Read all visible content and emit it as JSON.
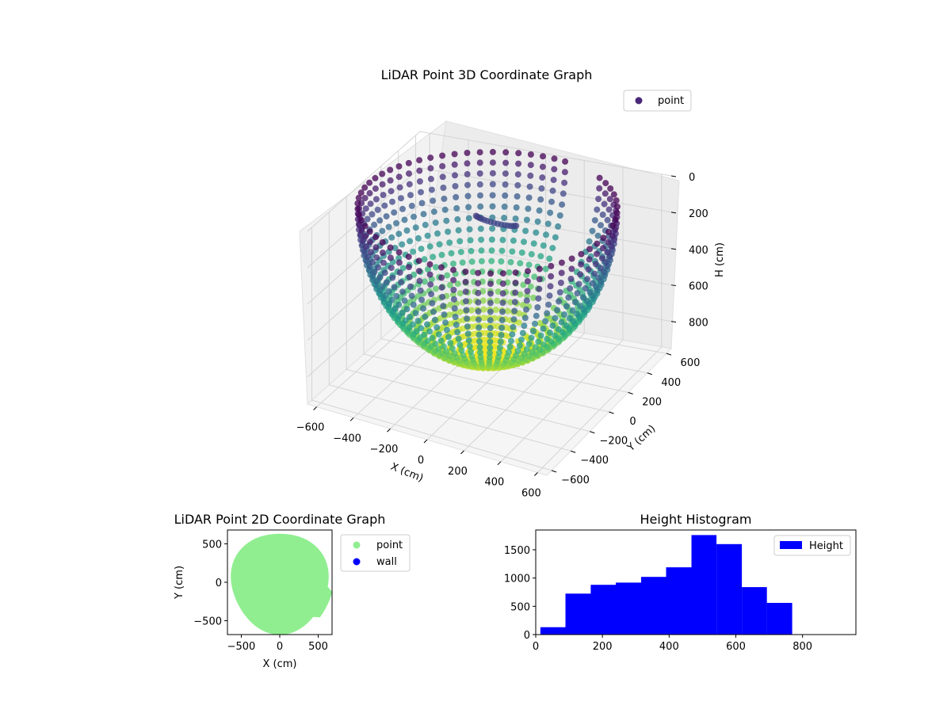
{
  "figure_colors": {
    "viridis_dark": "#440154",
    "viridis_mid": "#21918c",
    "viridis_bright": "#fde725",
    "point_green": "#90ee90",
    "wall_blue": "#0000ff",
    "hist_blue": "#0000ff"
  },
  "chart_data": [
    {
      "id": "plot3d",
      "type": "scatter",
      "title": "LiDAR Point 3D Coordinate Graph",
      "xlabel": "X (cm)",
      "ylabel": "Y (cm)",
      "zlabel": "H (cm)",
      "xticks": [
        "−600",
        "−400",
        "−200",
        "0",
        "200",
        "400",
        "600"
      ],
      "yticks": [
        "600",
        "400",
        "200",
        "0",
        "−200",
        "−400",
        "−600"
      ],
      "zticks": [
        "0",
        "200",
        "400",
        "600",
        "800"
      ],
      "xlim": [
        -650,
        650
      ],
      "ylim": [
        -650,
        650
      ],
      "zlim": [
        0,
        950
      ],
      "zinverted": true,
      "colormap": "viridis",
      "grid": true,
      "legend": {
        "placement": "top-right",
        "entries": [
          {
            "label": "point",
            "color": "#482878"
          }
        ]
      },
      "shape": {
        "description_free": true,
        "rim_radius": 620,
        "max_height": 800
      }
    },
    {
      "id": "plot2d",
      "type": "scatter",
      "title": "LiDAR Point 2D Coordinate Graph",
      "xlabel": "X (cm)",
      "ylabel": "Y (cm)",
      "xticks": [
        -500,
        0,
        500
      ],
      "yticks": [
        -500,
        0,
        500
      ],
      "xlim": [
        -680,
        680
      ],
      "ylim": [
        -680,
        680
      ],
      "series": [
        {
          "name": "point",
          "color": "#90ee90",
          "radius": 620
        },
        {
          "name": "wall",
          "color": "#0000ff"
        }
      ],
      "legend": {
        "placement": "right-outside",
        "entries": [
          {
            "label": "point",
            "color": "#90ee90"
          },
          {
            "label": "wall",
            "color": "#0000ff"
          }
        ]
      }
    },
    {
      "id": "histogram",
      "type": "bar",
      "title": "Height Histogram",
      "xticks": [
        0,
        200,
        400,
        600,
        800
      ],
      "yticks": [
        0,
        500,
        1000,
        1500
      ],
      "xlim": [
        0,
        960
      ],
      "ylim": [
        0,
        1850
      ],
      "bin_edges": [
        14,
        89,
        165,
        240,
        316,
        391,
        467,
        542,
        618,
        693,
        769
      ],
      "values": [
        130,
        725,
        880,
        920,
        1020,
        1190,
        1760,
        1600,
        840,
        560
      ],
      "color": "#0000ff",
      "legend": {
        "placement": "top-right",
        "entries": [
          {
            "label": "Height",
            "color": "#0000ff"
          }
        ]
      }
    }
  ]
}
